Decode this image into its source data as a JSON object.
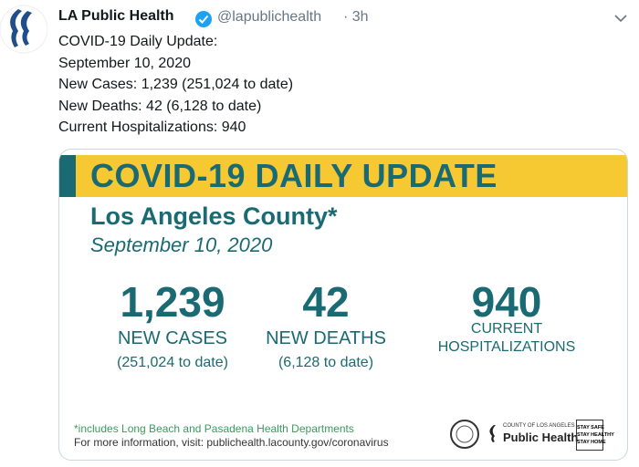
{
  "tweet": {
    "author": {
      "name": "LA Public Health",
      "handle": "@lapublichealth",
      "time": "· 3h"
    },
    "text": [
      "COVID-19 Daily Update:",
      "September 10, 2020",
      "New Cases: 1,239 (251,024 to date)",
      "New Deaths: 42 (6,128 to date)",
      "Current Hospitalizations: 940"
    ],
    "card": {
      "banner": "COVID-19 DAILY UPDATE",
      "region": "Los Angeles County*",
      "date": "September 10, 2020",
      "stats": [
        {
          "value": "1,239",
          "label": [
            "NEW CASES"
          ],
          "sub": "(251,024 to date)"
        },
        {
          "value": "42",
          "label": [
            "NEW DEATHS"
          ],
          "sub": "(6,128 to date)"
        },
        {
          "value": "940",
          "label": [
            "CURRENT",
            "HOSPITALIZATIONS"
          ]
        }
      ],
      "footnote": "*includes Long Beach and Pasadena Health Departments",
      "info": "For more information, visit: publichealth.lacounty.gov/coronavirus",
      "logos": {
        "county": "COUNTY OF LOS ANGELES",
        "department": "Public Health",
        "slogan": [
          "STAY SAFE",
          "STAY HEALTHY",
          "STAY HOME"
        ]
      }
    }
  }
}
